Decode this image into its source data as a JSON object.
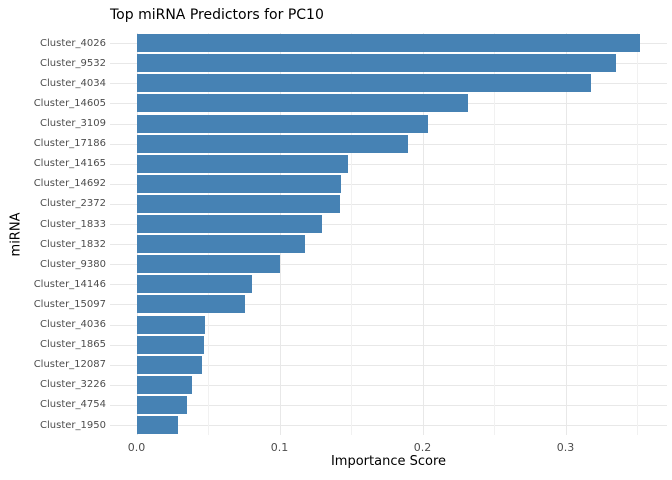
{
  "chart_data": {
    "type": "bar",
    "orientation": "horizontal",
    "title": "Top miRNA Predictors for PC10",
    "xlabel": "Importance Score",
    "ylabel": "miRNA",
    "categories": [
      "Cluster_4026",
      "Cluster_9532",
      "Cluster_4034",
      "Cluster_14605",
      "Cluster_3109",
      "Cluster_17186",
      "Cluster_14165",
      "Cluster_14692",
      "Cluster_2372",
      "Cluster_1833",
      "Cluster_1832",
      "Cluster_9380",
      "Cluster_14146",
      "Cluster_15097",
      "Cluster_4036",
      "Cluster_1865",
      "Cluster_12087",
      "Cluster_3226",
      "Cluster_4754",
      "Cluster_1950"
    ],
    "values": [
      0.352,
      0.335,
      0.318,
      0.232,
      0.204,
      0.19,
      0.148,
      0.143,
      0.142,
      0.13,
      0.118,
      0.1,
      0.081,
      0.076,
      0.048,
      0.047,
      0.046,
      0.039,
      0.035,
      0.029
    ],
    "xlim": [
      -0.0185,
      0.371
    ],
    "xticks_major": [
      0.0,
      0.1,
      0.2,
      0.3
    ],
    "xtick_labels": [
      "0.0",
      "0.1",
      "0.2",
      "0.3"
    ],
    "xticks_minor": [
      0.05,
      0.15,
      0.25,
      0.35
    ],
    "grid": true,
    "legend": "none",
    "colors": {
      "bar": "#4682B4",
      "grid_major": "#E8E8E8",
      "grid_minor": "#F1F1F1",
      "axis_text": "#4D4D4D",
      "title_text": "#000000",
      "background": "#FFFFFF"
    }
  }
}
